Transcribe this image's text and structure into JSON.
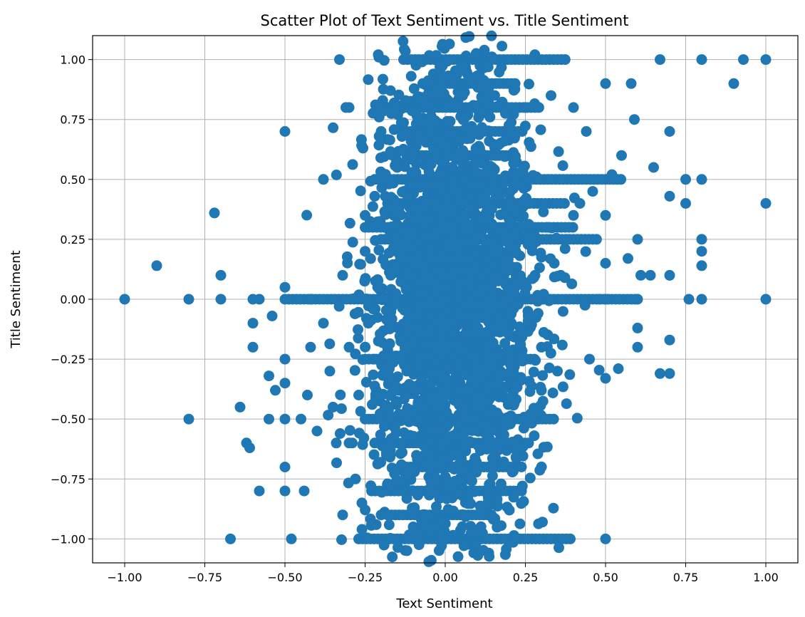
{
  "chart_data": {
    "type": "scatter",
    "title": "Scatter Plot of Text Sentiment vs. Title Sentiment",
    "xlabel": "Text Sentiment",
    "ylabel": "Title Sentiment",
    "xlim": [
      -1.1,
      1.1
    ],
    "ylim": [
      -1.1,
      1.1
    ],
    "x_ticks": [
      -1.0,
      -0.75,
      -0.5,
      -0.25,
      0.0,
      0.25,
      0.5,
      0.75,
      1.0
    ],
    "x_tick_labels": [
      "−1.00",
      "−0.75",
      "−0.50",
      "−0.25",
      "0.00",
      "0.25",
      "0.50",
      "0.75",
      "1.00"
    ],
    "y_ticks": [
      1.0,
      0.75,
      0.5,
      0.25,
      0.0,
      -0.25,
      -0.5,
      -0.75,
      -1.0
    ],
    "y_tick_labels": [
      "1.00",
      "0.75",
      "0.50",
      "0.25",
      "0.00",
      "−0.25",
      "−0.50",
      "−0.75",
      "−1.00"
    ],
    "grid": true,
    "marker_color": "#1f77b4",
    "points": {
      "x": [
        -1.0,
        -0.9,
        -0.8,
        -0.8,
        -0.72,
        -0.7,
        -0.7,
        -0.67,
        -0.64,
        -0.61,
        -0.6,
        -0.6,
        -0.6,
        -0.58,
        -0.58,
        -0.55,
        -0.55,
        -0.54,
        -0.53,
        -0.5,
        -0.5,
        -0.5,
        -0.5,
        -0.5,
        -0.5,
        -0.5,
        -0.48,
        -0.45,
        -0.44,
        -0.43,
        -0.42,
        -0.42,
        -0.4,
        -0.38,
        -0.38,
        -0.36,
        -0.35,
        -0.34,
        -0.32,
        -0.33,
        -0.31,
        -0.3,
        -0.3,
        -0.29,
        -0.28,
        -0.27,
        -0.26,
        -0.25,
        -0.24,
        -0.22,
        -0.2,
        -0.2,
        -0.2,
        -0.19,
        -0.18,
        -0.17,
        -0.15,
        -0.12,
        -0.1,
        -0.08,
        -0.06,
        -0.05,
        -0.04,
        -0.02,
        0.0,
        0.02,
        0.04,
        0.06,
        0.08,
        0.1,
        0.12,
        0.14,
        0.16,
        0.18,
        0.2,
        0.22,
        0.24,
        0.26,
        0.28,
        0.3,
        0.32,
        0.34,
        0.36,
        0.38,
        0.4,
        0.42,
        0.44,
        0.46,
        0.48,
        0.5,
        0.5,
        0.5,
        0.5,
        0.5,
        0.5,
        0.52,
        0.55,
        0.58,
        0.59,
        0.6,
        0.6,
        0.6,
        0.6,
        0.61,
        0.64,
        0.65,
        0.67,
        0.7,
        0.7,
        0.7,
        0.7,
        0.7,
        0.75,
        0.75,
        0.76,
        0.8,
        0.8,
        0.8,
        0.8,
        0.8,
        0.8,
        0.9,
        0.93,
        1.0,
        1.0,
        1.0,
        0.67,
        -0.32,
        -0.3,
        0.3,
        0.35,
        0.45,
        0.57,
        0.54,
        -0.62,
        -0.15,
        0.25,
        0.4,
        0.1,
        -0.1,
        0.0,
        0.2,
        -0.25,
        0.33
      ],
      "y": [
        0.0,
        0.14,
        0.0,
        -0.5,
        0.36,
        0.1,
        0.0,
        -1.0,
        -0.45,
        -0.62,
        -0.1,
        -0.2,
        0.0,
        -0.8,
        0.0,
        -0.32,
        -0.5,
        -0.07,
        -0.38,
        0.7,
        0.05,
        -0.25,
        -0.35,
        -0.5,
        -0.7,
        -0.8,
        -1.0,
        -0.5,
        -0.8,
        -0.4,
        -0.2,
        0.0,
        -0.55,
        0.5,
        -0.1,
        -0.3,
        -0.45,
        -0.6,
        -0.9,
        1.0,
        0.8,
        0.8,
        -0.2,
        -0.6,
        -0.75,
        -0.4,
        -0.85,
        0.2,
        -0.1,
        0.43,
        0.7,
        0.5,
        -0.9,
        0.3,
        -0.2,
        0.1,
        0.55,
        -0.3,
        0.6,
        -0.5,
        0.4,
        -0.6,
        0.2,
        -0.4,
        0.0,
        0.3,
        -0.2,
        0.5,
        0.1,
        -0.3,
        0.4,
        0.0,
        0.6,
        -0.1,
        0.7,
        0.2,
        -0.5,
        0.4,
        0.1,
        -0.2,
        0.3,
        0.15,
        0.1,
        0.25,
        0.35,
        0.4,
        0.7,
        0.45,
        0.0,
        0.35,
        0.9,
        0.15,
        -0.33,
        -1.0,
        0.0,
        0.52,
        0.6,
        0.9,
        0.75,
        0.25,
        0.0,
        -0.12,
        -0.2,
        0.1,
        0.1,
        0.55,
        -0.31,
        0.7,
        0.43,
        0.1,
        -0.17,
        -0.31,
        0.5,
        0.4,
        0.0,
        1.0,
        0.5,
        0.25,
        0.2,
        0.14,
        0.0,
        0.9,
        1.0,
        1.0,
        0.4,
        0.0,
        1.0,
        0.1,
        -0.6,
        -0.38,
        -0.3,
        -0.25,
        0.17,
        -0.29,
        -0.6,
        0.8,
        0.8,
        0.8,
        0.8,
        -0.95,
        -1.0,
        -0.88,
        0.35,
        0.85
      ],
      "row_segments": [
        {
          "y": 1.0,
          "x_from": -0.13,
          "x_to": 0.38
        },
        {
          "y": 0.9,
          "x_from": -0.07,
          "x_to": 0.22
        },
        {
          "y": 0.8,
          "x_from": -0.2,
          "x_to": 0.3
        },
        {
          "y": 0.7,
          "x_from": -0.12,
          "x_to": 0.25
        },
        {
          "y": 0.6,
          "x_from": -0.12,
          "x_to": 0.22
        },
        {
          "y": 0.5,
          "x_from": -0.22,
          "x_to": 0.55
        },
        {
          "y": 0.4,
          "x_from": -0.18,
          "x_to": 0.38
        },
        {
          "y": 0.3,
          "x_from": -0.25,
          "x_to": 0.4
        },
        {
          "y": 0.25,
          "x_from": -0.2,
          "x_to": 0.48
        },
        {
          "y": 0.0,
          "x_from": -0.5,
          "x_to": 0.6
        },
        {
          "y": -0.25,
          "x_from": -0.25,
          "x_to": 0.28
        },
        {
          "y": -0.5,
          "x_from": -0.25,
          "x_to": 0.35
        },
        {
          "y": -0.6,
          "x_from": -0.22,
          "x_to": 0.27
        },
        {
          "y": -0.7,
          "x_from": -0.12,
          "x_to": 0.22
        },
        {
          "y": -0.8,
          "x_from": -0.23,
          "x_to": 0.25
        },
        {
          "y": -0.9,
          "x_from": -0.18,
          "x_to": 0.15
        },
        {
          "y": -1.0,
          "x_from": -0.27,
          "x_to": 0.4
        }
      ],
      "dense_core": {
        "center_x": 0.02,
        "center_y": 0.0,
        "spread_x": 0.13,
        "spread_y": 0.5
      }
    }
  }
}
